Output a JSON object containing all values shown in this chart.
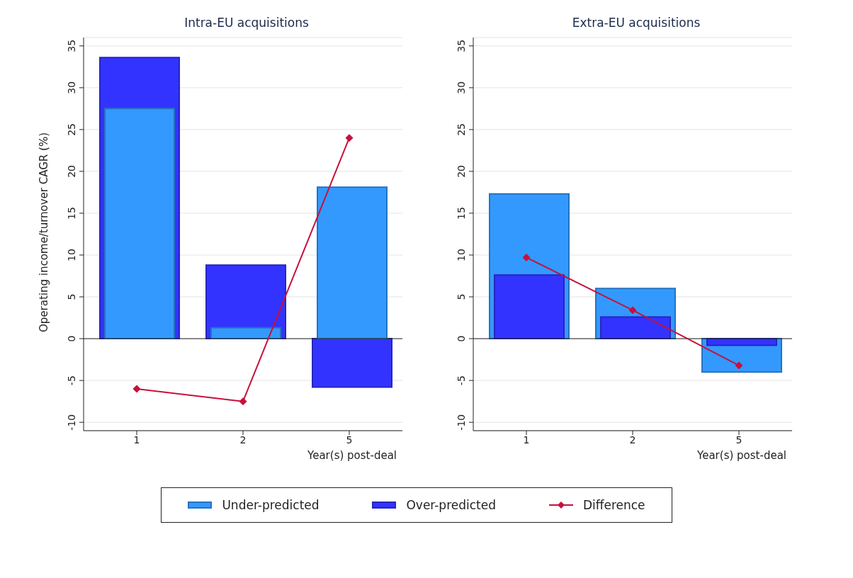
{
  "chart_data": [
    {
      "type": "bar",
      "title": "Intra-EU acquisitions",
      "xlabel": "Year(s) post-deal",
      "ylabel": "Operating income/turnover CAGR (%)",
      "categories": [
        "1",
        "2",
        "5"
      ],
      "series": [
        {
          "name": "Under-predicted",
          "color": "#3399ff",
          "values": [
            27.5,
            1.3,
            18.1
          ]
        },
        {
          "name": "Over-predicted",
          "color": "#3333ff",
          "values": [
            33.6,
            8.8,
            -5.8
          ]
        },
        {
          "name": "Difference",
          "type": "line",
          "color": "#c8103c",
          "values": [
            -6,
            -7.5,
            24
          ]
        }
      ],
      "ylim": [
        -11,
        36
      ],
      "yticks": [
        -10,
        -5,
        0,
        5,
        10,
        15,
        20,
        25,
        30,
        35
      ],
      "grid": "y",
      "legend": "bottom",
      "marker": "diamond"
    },
    {
      "type": "bar",
      "title": "Extra-EU acquisitions",
      "xlabel": "Year(s) post-deal",
      "categories": [
        "1",
        "2",
        "5"
      ],
      "series": [
        {
          "color": "#3399ff",
          "values": [
            17.3,
            6,
            -4
          ]
        },
        {
          "color": "#3333ff",
          "values": [
            7.6,
            2.6,
            -0.8
          ]
        },
        {
          "type": "line",
          "color": "#c8103c",
          "values": [
            9.7,
            3.4,
            -3.2
          ]
        }
      ],
      "ylim": [
        -11,
        36
      ],
      "yticks": [
        -10,
        -5,
        0,
        5,
        10,
        15,
        20,
        25,
        30,
        35
      ],
      "grid": "y",
      "marker": "diamond"
    }
  ]
}
